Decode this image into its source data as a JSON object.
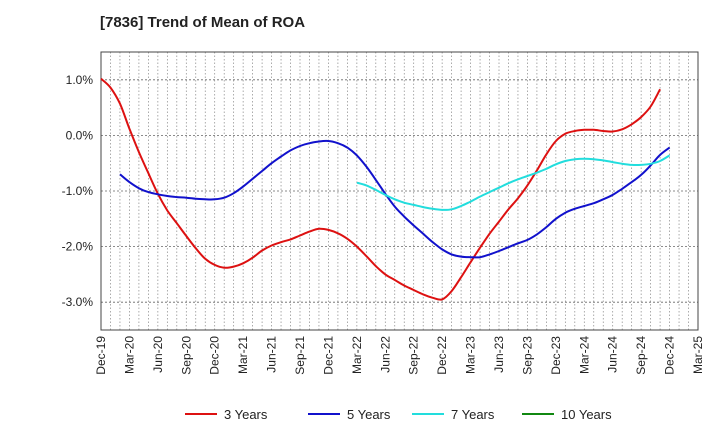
{
  "chart_data": {
    "type": "line",
    "title": "[7836]  Trend of Mean of ROA",
    "xlabel": "",
    "ylabel": "",
    "y_unit": "%",
    "ylim": [
      -3.5,
      1.5
    ],
    "y_ticks": [
      1.0,
      0.0,
      -1.0,
      -2.0,
      -3.0
    ],
    "y_tick_labels": [
      "1.0%",
      "0.0%",
      "-1.0%",
      "-2.0%",
      "-3.0%"
    ],
    "x_ticks": [
      "Dec-19",
      "Mar-20",
      "Jun-20",
      "Sep-20",
      "Dec-20",
      "Mar-21",
      "Jun-21",
      "Sep-21",
      "Dec-21",
      "Mar-22",
      "Jun-22",
      "Sep-22",
      "Dec-22",
      "Mar-23",
      "Jun-23",
      "Sep-23",
      "Dec-23",
      "Mar-24",
      "Jun-24",
      "Sep-24",
      "Dec-24",
      "Mar-25"
    ],
    "grid": true,
    "legend_position": "bottom",
    "series": [
      {
        "name": "3 Years",
        "color": "#dd1111",
        "points": [
          [
            "Dec-19",
            1.02
          ],
          [
            "Jan-20",
            0.86
          ],
          [
            "Feb-20",
            0.57
          ],
          [
            "Mar-20",
            0.12
          ],
          [
            "Apr-20",
            -0.3
          ],
          [
            "May-20",
            -0.68
          ],
          [
            "Jun-20",
            -1.05
          ],
          [
            "Jul-20",
            -1.35
          ],
          [
            "Aug-20",
            -1.58
          ],
          [
            "Sep-20",
            -1.81
          ],
          [
            "Oct-20",
            -2.03
          ],
          [
            "Nov-20",
            -2.22
          ],
          [
            "Dec-20",
            -2.33
          ],
          [
            "Jan-21",
            -2.38
          ],
          [
            "Feb-21",
            -2.36
          ],
          [
            "Mar-21",
            -2.3
          ],
          [
            "Apr-21",
            -2.2
          ],
          [
            "May-21",
            -2.07
          ],
          [
            "Jun-21",
            -1.98
          ],
          [
            "Jul-21",
            -1.92
          ],
          [
            "Aug-21",
            -1.87
          ],
          [
            "Sep-21",
            -1.8
          ],
          [
            "Oct-21",
            -1.73
          ],
          [
            "Nov-21",
            -1.68
          ],
          [
            "Dec-21",
            -1.7
          ],
          [
            "Jan-22",
            -1.76
          ],
          [
            "Feb-22",
            -1.86
          ],
          [
            "Mar-22",
            -2.0
          ],
          [
            "Apr-22",
            -2.17
          ],
          [
            "May-22",
            -2.35
          ],
          [
            "Jun-22",
            -2.5
          ],
          [
            "Jul-22",
            -2.6
          ],
          [
            "Aug-22",
            -2.7
          ],
          [
            "Sep-22",
            -2.78
          ],
          [
            "Oct-22",
            -2.86
          ],
          [
            "Nov-22",
            -2.92
          ],
          [
            "Dec-22",
            -2.95
          ],
          [
            "Jan-23",
            -2.8
          ],
          [
            "Feb-23",
            -2.55
          ],
          [
            "Mar-23",
            -2.28
          ],
          [
            "Apr-23",
            -2.02
          ],
          [
            "May-23",
            -1.77
          ],
          [
            "Jun-23",
            -1.55
          ],
          [
            "Jul-23",
            -1.33
          ],
          [
            "Aug-23",
            -1.13
          ],
          [
            "Sep-23",
            -0.9
          ],
          [
            "Oct-23",
            -0.63
          ],
          [
            "Nov-23",
            -0.34
          ],
          [
            "Dec-23",
            -0.1
          ],
          [
            "Jan-24",
            0.03
          ],
          [
            "Feb-24",
            0.08
          ],
          [
            "Mar-24",
            0.1
          ],
          [
            "Apr-24",
            0.1
          ],
          [
            "May-24",
            0.08
          ],
          [
            "Jun-24",
            0.07
          ],
          [
            "Jul-24",
            0.11
          ],
          [
            "Aug-24",
            0.2
          ],
          [
            "Sep-24",
            0.33
          ],
          [
            "Oct-24",
            0.52
          ],
          [
            "Nov-24",
            0.83
          ]
        ]
      },
      {
        "name": "5 Years",
        "color": "#1111cc",
        "points": [
          [
            "Feb-20",
            -0.7
          ],
          [
            "Mar-20",
            -0.84
          ],
          [
            "Apr-20",
            -0.95
          ],
          [
            "May-20",
            -1.02
          ],
          [
            "Jun-20",
            -1.06
          ],
          [
            "Jul-20",
            -1.09
          ],
          [
            "Aug-20",
            -1.11
          ],
          [
            "Sep-20",
            -1.12
          ],
          [
            "Oct-20",
            -1.14
          ],
          [
            "Nov-20",
            -1.15
          ],
          [
            "Dec-20",
            -1.15
          ],
          [
            "Jan-21",
            -1.12
          ],
          [
            "Feb-21",
            -1.04
          ],
          [
            "Mar-21",
            -0.92
          ],
          [
            "Apr-21",
            -0.78
          ],
          [
            "May-21",
            -0.64
          ],
          [
            "Jun-21",
            -0.5
          ],
          [
            "Jul-21",
            -0.38
          ],
          [
            "Aug-21",
            -0.27
          ],
          [
            "Sep-21",
            -0.19
          ],
          [
            "Oct-21",
            -0.14
          ],
          [
            "Nov-21",
            -0.11
          ],
          [
            "Dec-21",
            -0.1
          ],
          [
            "Jan-22",
            -0.14
          ],
          [
            "Feb-22",
            -0.22
          ],
          [
            "Mar-22",
            -0.36
          ],
          [
            "Apr-22",
            -0.56
          ],
          [
            "May-22",
            -0.8
          ],
          [
            "Jun-22",
            -1.05
          ],
          [
            "Jul-22",
            -1.28
          ],
          [
            "Aug-22",
            -1.46
          ],
          [
            "Sep-22",
            -1.62
          ],
          [
            "Oct-22",
            -1.77
          ],
          [
            "Nov-22",
            -1.92
          ],
          [
            "Dec-22",
            -2.05
          ],
          [
            "Jan-23",
            -2.14
          ],
          [
            "Feb-23",
            -2.18
          ],
          [
            "Mar-23",
            -2.19
          ],
          [
            "Apr-23",
            -2.19
          ],
          [
            "May-23",
            -2.14
          ],
          [
            "Jun-23",
            -2.08
          ],
          [
            "Jul-23",
            -2.01
          ],
          [
            "Aug-23",
            -1.94
          ],
          [
            "Sep-23",
            -1.88
          ],
          [
            "Oct-23",
            -1.78
          ],
          [
            "Nov-23",
            -1.65
          ],
          [
            "Dec-23",
            -1.5
          ],
          [
            "Jan-24",
            -1.39
          ],
          [
            "Feb-24",
            -1.32
          ],
          [
            "Mar-24",
            -1.27
          ],
          [
            "Apr-24",
            -1.22
          ],
          [
            "May-24",
            -1.15
          ],
          [
            "Jun-24",
            -1.07
          ],
          [
            "Jul-24",
            -0.96
          ],
          [
            "Aug-24",
            -0.84
          ],
          [
            "Sep-24",
            -0.71
          ],
          [
            "Oct-24",
            -0.54
          ],
          [
            "Nov-24",
            -0.35
          ],
          [
            "Dec-24",
            -0.22
          ]
        ]
      },
      {
        "name": "7 Years",
        "color": "#22dddd",
        "points": [
          [
            "Mar-22",
            -0.85
          ],
          [
            "Apr-22",
            -0.9
          ],
          [
            "May-22",
            -0.98
          ],
          [
            "Jun-22",
            -1.07
          ],
          [
            "Jul-22",
            -1.15
          ],
          [
            "Aug-22",
            -1.21
          ],
          [
            "Sep-22",
            -1.25
          ],
          [
            "Oct-22",
            -1.29
          ],
          [
            "Nov-22",
            -1.32
          ],
          [
            "Dec-22",
            -1.34
          ],
          [
            "Jan-23",
            -1.33
          ],
          [
            "Feb-23",
            -1.27
          ],
          [
            "Mar-23",
            -1.19
          ],
          [
            "Apr-23",
            -1.1
          ],
          [
            "May-23",
            -1.02
          ],
          [
            "Jun-23",
            -0.94
          ],
          [
            "Jul-23",
            -0.86
          ],
          [
            "Aug-23",
            -0.79
          ],
          [
            "Sep-23",
            -0.73
          ],
          [
            "Oct-23",
            -0.67
          ],
          [
            "Nov-23",
            -0.6
          ],
          [
            "Dec-23",
            -0.52
          ],
          [
            "Jan-24",
            -0.46
          ],
          [
            "Feb-24",
            -0.43
          ],
          [
            "Mar-24",
            -0.42
          ],
          [
            "Apr-24",
            -0.43
          ],
          [
            "May-24",
            -0.45
          ],
          [
            "Jun-24",
            -0.48
          ],
          [
            "Jul-24",
            -0.51
          ],
          [
            "Aug-24",
            -0.53
          ],
          [
            "Sep-24",
            -0.53
          ],
          [
            "Oct-24",
            -0.51
          ],
          [
            "Nov-24",
            -0.46
          ],
          [
            "Dec-24",
            -0.36
          ]
        ]
      },
      {
        "name": "10 Years",
        "color": "#118811",
        "points": []
      }
    ]
  }
}
